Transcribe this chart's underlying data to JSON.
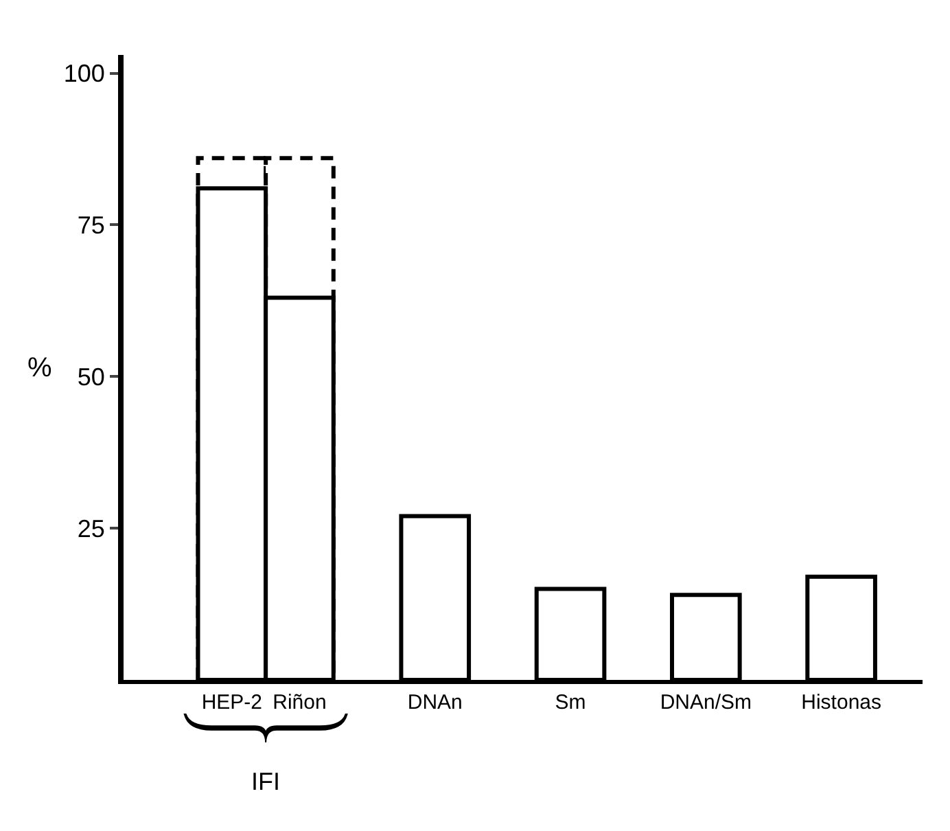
{
  "chart_data": {
    "type": "bar",
    "ylabel": "%",
    "categories": [
      "HEP-2",
      "Riñon",
      "DNAn",
      "Sm",
      "DNAn/Sm",
      "Histonas"
    ],
    "series": [
      {
        "color": "#ffffff",
        "values": [
          81,
          63,
          27,
          15,
          14,
          17
        ]
      },
      {
        "color": "#ffffff",
        "values": [
          86,
          86,
          null,
          null,
          null,
          null
        ],
        "line_style": "dashed"
      }
    ],
    "ylim": [
      0,
      103
    ],
    "yticks": [
      25,
      50,
      75,
      100
    ],
    "annotations": [
      "IFI"
    ]
  }
}
